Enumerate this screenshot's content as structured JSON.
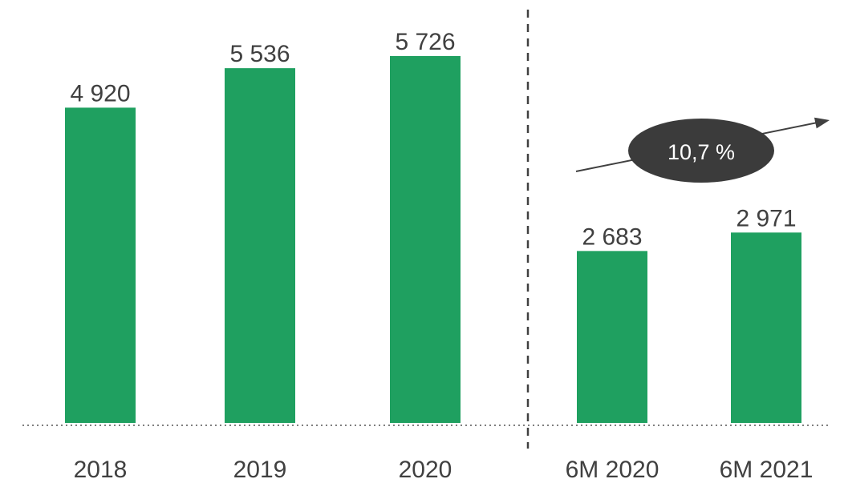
{
  "chart_data": {
    "type": "bar",
    "categories": [
      "2018",
      "2019",
      "2020",
      "6M 2020",
      "6M 2021"
    ],
    "values": [
      4920,
      5536,
      5726,
      2683,
      2971
    ],
    "value_labels": [
      "4 920",
      "5 536",
      "5 726",
      "2 683",
      "2 971"
    ],
    "ylim": [
      0,
      6000
    ],
    "grid": false,
    "legend": "none",
    "bar_color": "#1fa060",
    "separator_after_index": 2,
    "annotation": {
      "text": "10,7 %",
      "between": [
        "6M 2020",
        "6M 2021"
      ]
    },
    "title": "",
    "xlabel": "",
    "ylabel": ""
  },
  "colors": {
    "bar": "#1fa060",
    "text": "#404040",
    "badge": "#3b3b3b",
    "badge_text": "#ffffff",
    "baseline": "#7f7f7f",
    "separator": "#404040"
  }
}
